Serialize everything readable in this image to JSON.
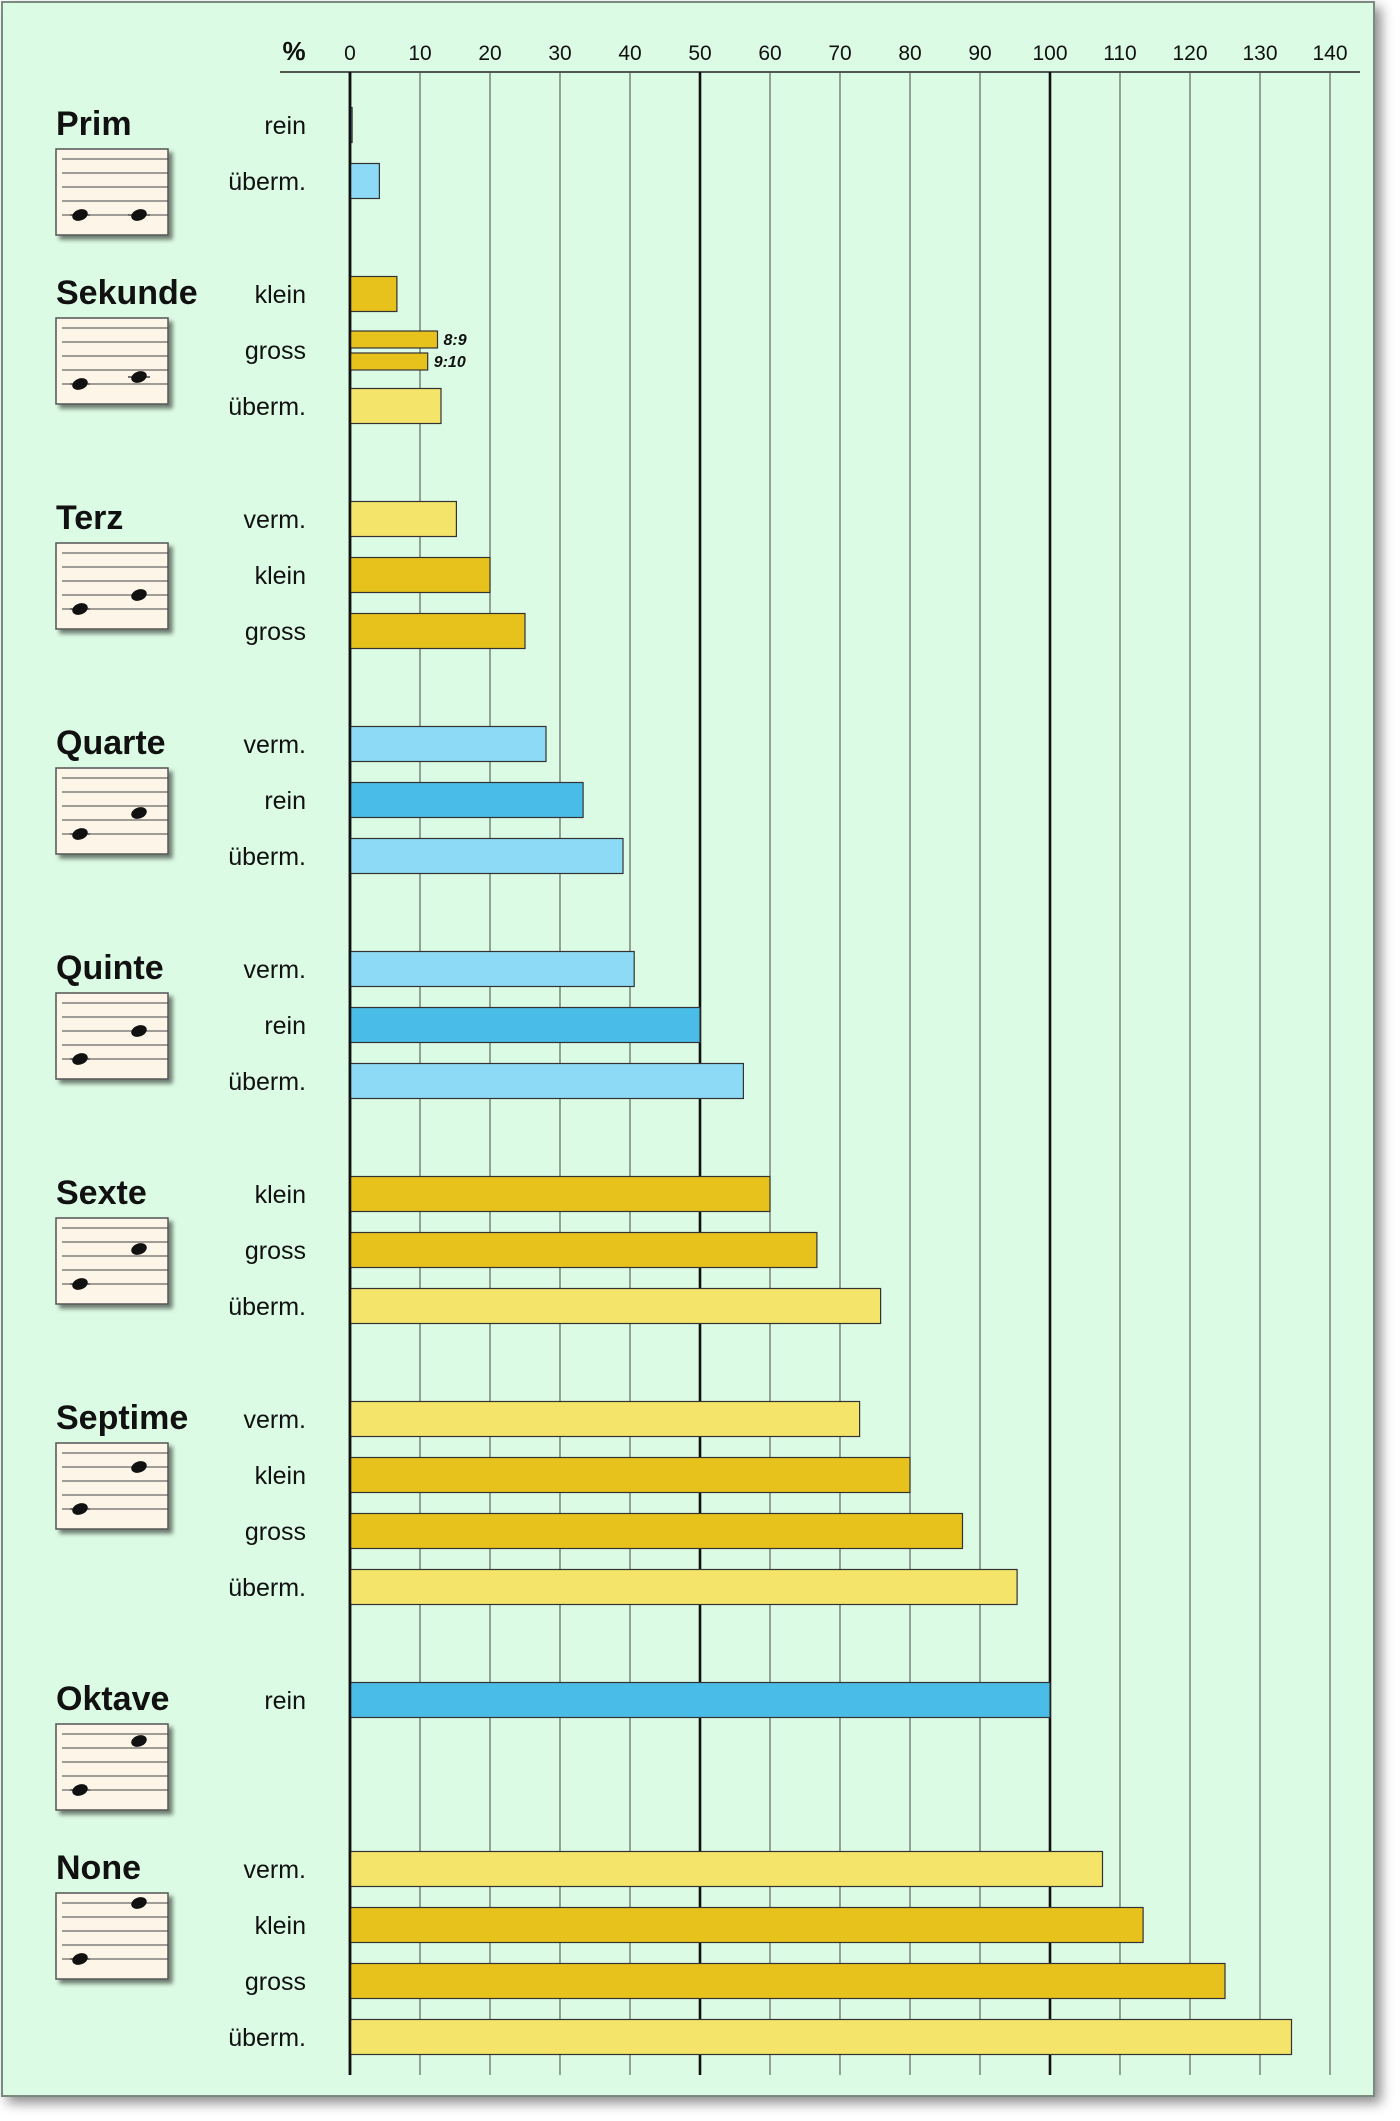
{
  "chart_data": {
    "type": "bar",
    "orientation": "horizontal",
    "unit_label": "%",
    "xlim": [
      0,
      140
    ],
    "x_ticks": [
      0,
      10,
      20,
      30,
      40,
      50,
      60,
      70,
      80,
      90,
      100,
      110,
      120,
      130,
      140
    ],
    "emphasized_ticks": [
      0,
      50,
      100
    ],
    "grid": true,
    "colors": {
      "background": "#dcfbe4",
      "blue_light": "#8cdaf5",
      "blue_dark": "#49bce8",
      "yellow_light": "#f4e46a",
      "yellow_dark": "#e8c21c"
    },
    "groups": [
      {
        "name": "Prim",
        "rows": [
          {
            "label": "rein",
            "bars": [
              {
                "value": 0.3,
                "color": "blue_dark"
              }
            ]
          },
          {
            "label": "überm.",
            "bars": [
              {
                "value": 4.2,
                "color": "blue_light"
              }
            ]
          }
        ]
      },
      {
        "name": "Sekunde",
        "rows": [
          {
            "label": "klein",
            "bars": [
              {
                "value": 6.7,
                "color": "yellow_dark"
              }
            ]
          },
          {
            "label": "gross",
            "bars": [
              {
                "value": 12.5,
                "color": "yellow_dark",
                "label": "8:9"
              },
              {
                "value": 11.1,
                "color": "yellow_dark",
                "label": "9:10"
              }
            ]
          },
          {
            "label": "überm.",
            "bars": [
              {
                "value": 13,
                "color": "yellow_light"
              }
            ]
          }
        ]
      },
      {
        "name": "Terz",
        "rows": [
          {
            "label": "verm.",
            "bars": [
              {
                "value": 15.2,
                "color": "yellow_light"
              }
            ]
          },
          {
            "label": "klein",
            "bars": [
              {
                "value": 20,
                "color": "yellow_dark"
              }
            ]
          },
          {
            "label": "gross",
            "bars": [
              {
                "value": 25,
                "color": "yellow_dark"
              }
            ]
          }
        ]
      },
      {
        "name": "Quarte",
        "rows": [
          {
            "label": "verm.",
            "bars": [
              {
                "value": 28,
                "color": "blue_light"
              }
            ]
          },
          {
            "label": "rein",
            "bars": [
              {
                "value": 33.3,
                "color": "blue_dark"
              }
            ]
          },
          {
            "label": "überm.",
            "bars": [
              {
                "value": 39,
                "color": "blue_light"
              }
            ]
          }
        ]
      },
      {
        "name": "Quinte",
        "rows": [
          {
            "label": "verm.",
            "bars": [
              {
                "value": 40.6,
                "color": "blue_light"
              }
            ]
          },
          {
            "label": "rein",
            "bars": [
              {
                "value": 50,
                "color": "blue_dark"
              }
            ]
          },
          {
            "label": "überm.",
            "bars": [
              {
                "value": 56.2,
                "color": "blue_light"
              }
            ]
          }
        ]
      },
      {
        "name": "Sexte",
        "rows": [
          {
            "label": "klein",
            "bars": [
              {
                "value": 60,
                "color": "yellow_dark"
              }
            ]
          },
          {
            "label": "gross",
            "bars": [
              {
                "value": 66.7,
                "color": "yellow_dark"
              }
            ]
          },
          {
            "label": "überm.",
            "bars": [
              {
                "value": 75.8,
                "color": "yellow_light"
              }
            ]
          }
        ]
      },
      {
        "name": "Septime",
        "rows": [
          {
            "label": "verm.",
            "bars": [
              {
                "value": 72.8,
                "color": "yellow_light"
              }
            ]
          },
          {
            "label": "klein",
            "bars": [
              {
                "value": 80,
                "color": "yellow_dark"
              }
            ]
          },
          {
            "label": "gross",
            "bars": [
              {
                "value": 87.5,
                "color": "yellow_dark"
              }
            ]
          },
          {
            "label": "überm.",
            "bars": [
              {
                "value": 95.3,
                "color": "yellow_light"
              }
            ]
          }
        ]
      },
      {
        "name": "Oktave",
        "rows": [
          {
            "label": "rein",
            "bars": [
              {
                "value": 100,
                "color": "blue_dark"
              }
            ]
          }
        ]
      },
      {
        "name": "None",
        "rows": [
          {
            "label": "verm.",
            "bars": [
              {
                "value": 107.5,
                "color": "yellow_light"
              }
            ]
          },
          {
            "label": "klein",
            "bars": [
              {
                "value": 113.3,
                "color": "yellow_dark"
              }
            ]
          },
          {
            "label": "gross",
            "bars": [
              {
                "value": 125,
                "color": "yellow_dark"
              }
            ]
          },
          {
            "label": "überm.",
            "bars": [
              {
                "value": 134.5,
                "color": "yellow_light"
              }
            ]
          }
        ]
      }
    ]
  }
}
